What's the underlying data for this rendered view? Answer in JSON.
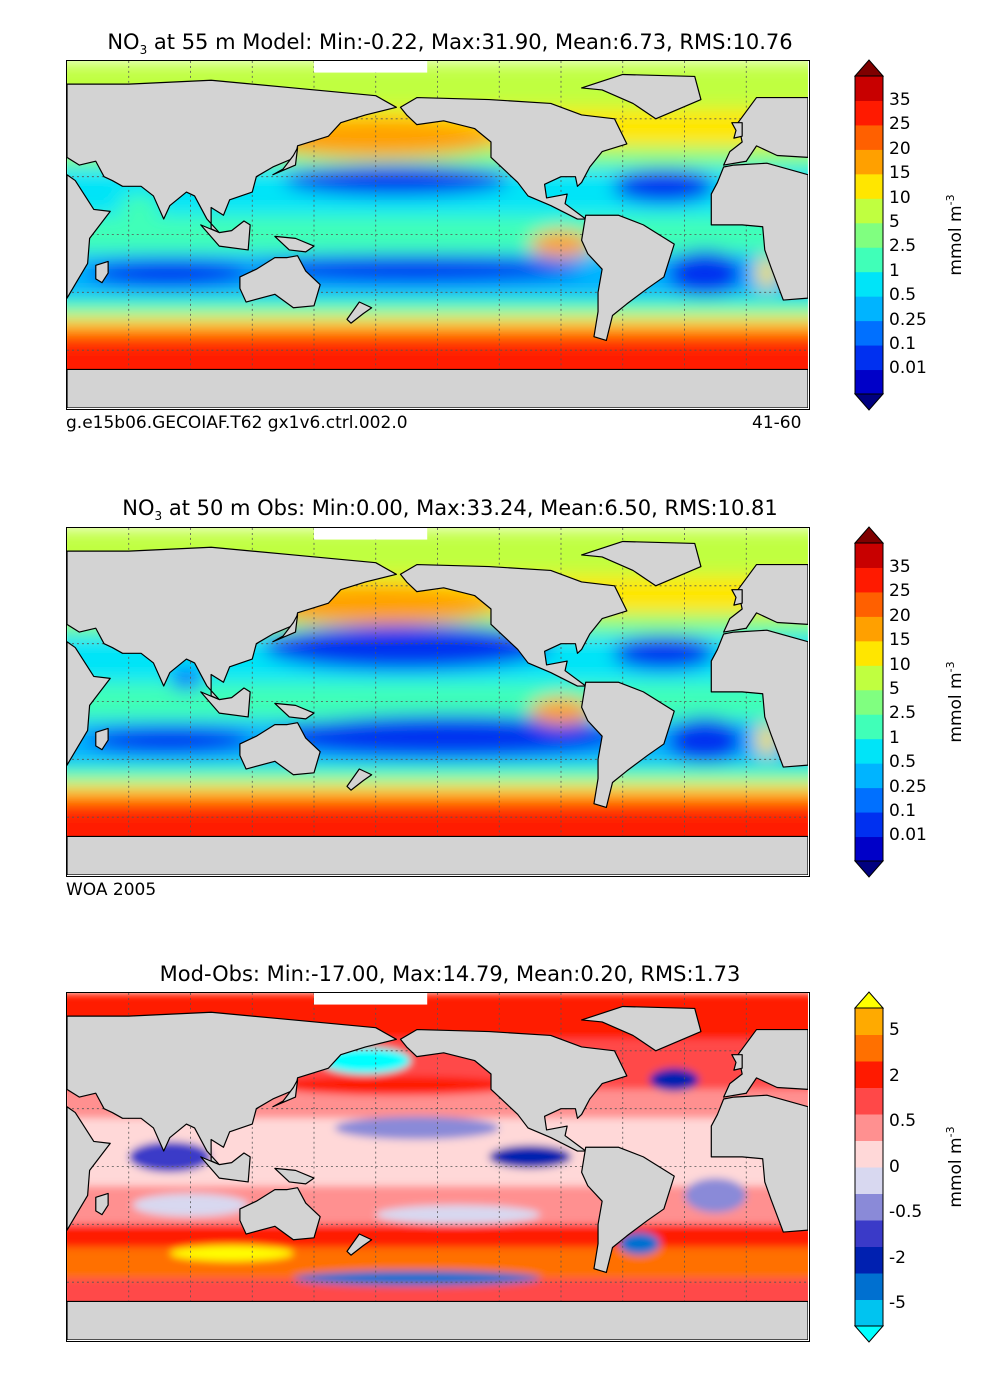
{
  "panels": [
    {
      "title_pre": "NO",
      "title_sub": "3",
      "title_rest": " at 55 m Model: Min:-0.22, Max:31.90, Mean:6.73, RMS:10.76",
      "footer_left": "g.e15b06.GECOIAF.T62 gx1v6.ctrl.002.0",
      "footer_right": "41-60",
      "colorbar_ticks": [
        "35",
        "25",
        "20",
        "15",
        "10",
        "5",
        "2.5",
        "1",
        "0.5",
        "0.25",
        "0.1",
        "0.01"
      ],
      "colorbar_label_main": "mmol m",
      "colorbar_label_sup": "-3"
    },
    {
      "title_pre": "NO",
      "title_sub": "3",
      "title_rest": " at 50 m Obs: Min:0.00, Max:33.24, Mean:6.50, RMS:10.81",
      "footer_left": "WOA 2005",
      "footer_right": "",
      "colorbar_ticks": [
        "35",
        "25",
        "20",
        "15",
        "10",
        "5",
        "2.5",
        "1",
        "0.5",
        "0.25",
        "0.1",
        "0.01"
      ],
      "colorbar_label_main": "mmol m",
      "colorbar_label_sup": "-3"
    },
    {
      "title_pre": "",
      "title_sub": "",
      "title_rest": "Mod-Obs: Min:-17.00, Max:14.79, Mean:0.20, RMS:1.73",
      "footer_left": "",
      "footer_right": "",
      "colorbar_ticks": [
        "5",
        "2",
        "0.5",
        "0",
        "-0.5",
        "-2",
        "-5"
      ],
      "colorbar_label_main": "mmol m",
      "colorbar_label_sup": "-3"
    }
  ],
  "colors": {
    "land": "#d3d3d3",
    "nitrate_scale": [
      "#00007f",
      "#0000c8",
      "#0030f0",
      "#0070ff",
      "#00b4ff",
      "#00e4f8",
      "#40ffb8",
      "#80ff80",
      "#c0ff40",
      "#ffe600",
      "#ffa000",
      "#ff6000",
      "#ff1a00",
      "#c80000",
      "#7f0000"
    ],
    "difference_scale": [
      "#00ffff",
      "#00c4f0",
      "#0070d0",
      "#0020b0",
      "#3a3ac8",
      "#8a8ad8",
      "#d8d8f0",
      "#ffd8d8",
      "#ff9090",
      "#ff4848",
      "#ff1a00",
      "#ff7000",
      "#ffaa00",
      "#ffff00"
    ]
  }
}
